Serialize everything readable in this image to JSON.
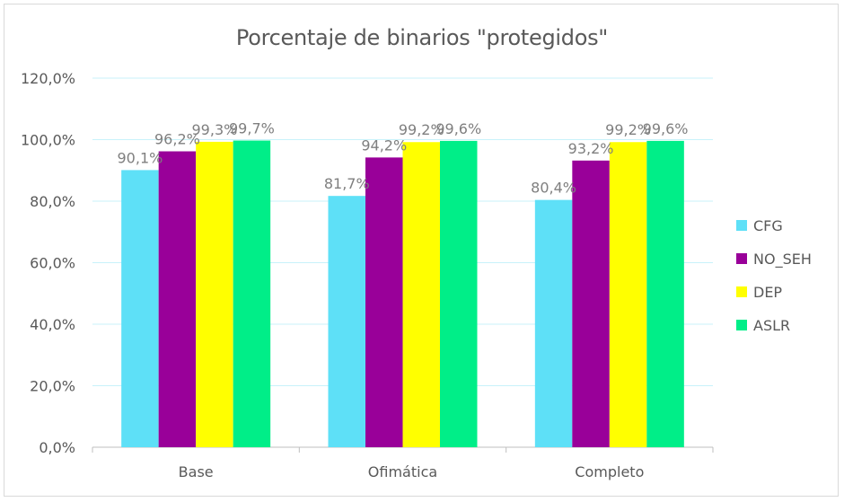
{
  "chart_data": {
    "type": "bar",
    "title": "Porcentaje de binarios \"protegidos\"",
    "xlabel": "",
    "ylabel": "",
    "categories": [
      "Base",
      "Ofimática",
      "Completo"
    ],
    "series": [
      {
        "name": "CFG",
        "color": "#5ee0f7",
        "values": [
          90.1,
          81.7,
          80.4
        ],
        "labels": [
          "90,1%",
          "81,7%",
          "80,4%"
        ]
      },
      {
        "name": "NO_SEH",
        "color": "#990099",
        "values": [
          96.2,
          94.2,
          93.2
        ],
        "labels": [
          "96,2%",
          "94,2%",
          "93,2%"
        ]
      },
      {
        "name": "DEP",
        "color": "#ffff00",
        "values": [
          99.3,
          99.2,
          99.2
        ],
        "labels": [
          "99,3%",
          "99,2%",
          "99,2%"
        ]
      },
      {
        "name": "ASLR",
        "color": "#00ee88",
        "values": [
          99.7,
          99.6,
          99.6
        ],
        "labels": [
          "99,7%",
          "99,6%",
          "99,6%"
        ]
      }
    ],
    "ylim": [
      0,
      120
    ],
    "yticks": [
      0,
      20,
      40,
      60,
      80,
      100,
      120
    ],
    "ytick_labels": [
      "0,0%",
      "20,0%",
      "40,0%",
      "60,0%",
      "80,0%",
      "100,0%",
      "120,0%"
    ],
    "grid": true,
    "legend_position": "right"
  }
}
